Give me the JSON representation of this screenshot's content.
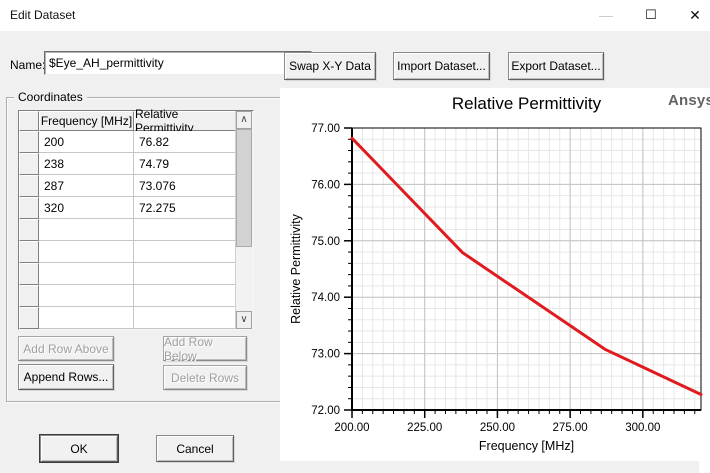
{
  "window": {
    "title": "Edit Dataset",
    "controls": {
      "minimize_icon": "—",
      "maximize_icon": "☐",
      "close_icon": "✕"
    }
  },
  "name_field": {
    "label": "Name:",
    "value": "$Eye_AH_permittivity"
  },
  "toolbar": {
    "swap_label": "Swap X-Y Data",
    "import_label": "Import Dataset...",
    "export_label": "Export Dataset..."
  },
  "coordinates": {
    "group_label": "Coordinates",
    "columns": [
      "Frequency [MHz]",
      "Relative Permittivity"
    ],
    "rows": [
      [
        "200",
        "76.82"
      ],
      [
        "238",
        "74.79"
      ],
      [
        "287",
        "73.076"
      ],
      [
        "320",
        "72.275"
      ]
    ],
    "empty_row_count": 5,
    "scrollbar": {
      "up_icon": "∧",
      "down_icon": "∨"
    },
    "buttons": {
      "add_above": {
        "label": "Add Row Above",
        "enabled": false
      },
      "add_below": {
        "label": "Add Row Below",
        "enabled": false
      },
      "append": {
        "label": "Append Rows...",
        "enabled": true
      },
      "delete": {
        "label": "Delete Rows",
        "enabled": false
      }
    }
  },
  "dialog_buttons": {
    "ok_label": "OK",
    "cancel_label": "Cancel"
  },
  "chart_data": {
    "type": "line",
    "title": "Relative Permittivity",
    "watermark": "Ansys",
    "xlabel": "Frequency [MHz]",
    "ylabel": "Relative Permittivity",
    "x": [
      200,
      238,
      287,
      320
    ],
    "y": [
      76.82,
      74.79,
      73.076,
      72.275
    ],
    "xlim": [
      200,
      320
    ],
    "ylim": [
      72,
      77
    ],
    "x_major_ticks": [
      200,
      225,
      250,
      275,
      300
    ],
    "x_major_step": 25,
    "x_minor_divisions": 7,
    "y_major_ticks": [
      72,
      73,
      74,
      75,
      76,
      77
    ],
    "y_major_step": 1,
    "y_minor_divisions": 5,
    "tick_label_decimals": 2,
    "grid": true,
    "legend": "none",
    "colors": {
      "line": "#e01b20",
      "grid_minor": "#e7e7e7",
      "grid_major": "#c3c3c3",
      "axis": "#000000",
      "watermark": "#636466"
    }
  }
}
